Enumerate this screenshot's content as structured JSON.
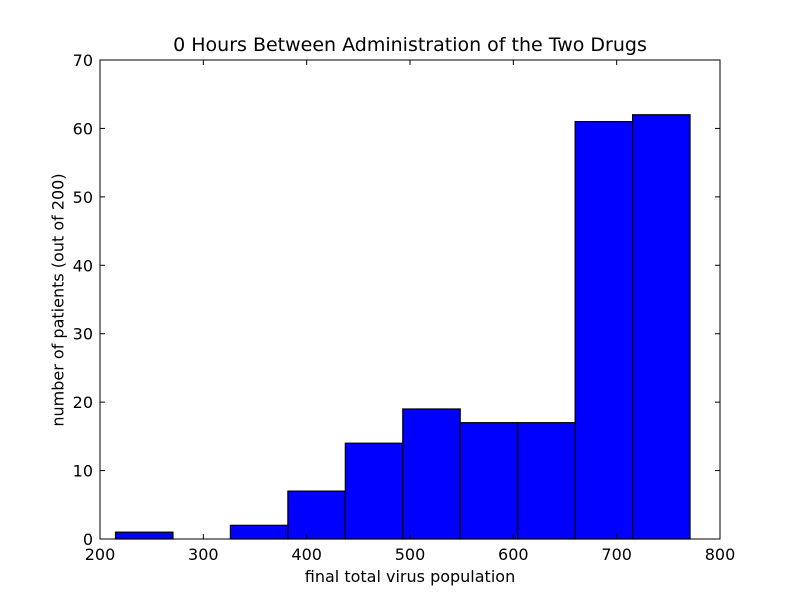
{
  "chart_data": {
    "type": "bar",
    "title": "0 Hours Between Administration of the Two Drugs",
    "xlabel": "final total virus population",
    "ylabel": "number of patients (out of 200)",
    "xlim": [
      200,
      800
    ],
    "ylim": [
      0,
      70
    ],
    "xticks": [
      200,
      300,
      400,
      500,
      600,
      700,
      800
    ],
    "yticks": [
      0,
      10,
      20,
      30,
      40,
      50,
      60,
      70
    ],
    "bin_edges": [
      215,
      270.6,
      326.2,
      381.8,
      437.4,
      493,
      548.6,
      604.2,
      659.8,
      715.4,
      771
    ],
    "values": [
      1,
      0,
      2,
      7,
      14,
      19,
      17,
      17,
      61,
      62
    ],
    "bar_color": "#0000ff",
    "edge_color": "#000000",
    "grid": false,
    "legend": "none"
  }
}
